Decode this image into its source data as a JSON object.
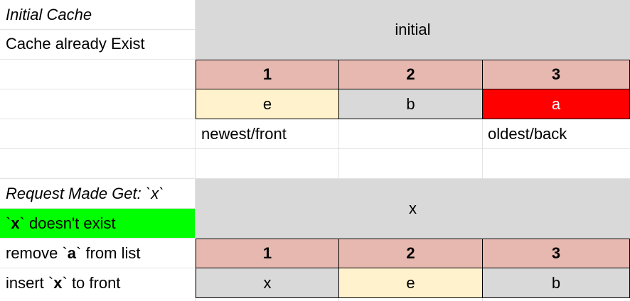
{
  "section1": {
    "title": "Initial Cache",
    "subtitle": "Cache already Exist",
    "state_label": "initial",
    "positions": [
      "1",
      "2",
      "3"
    ],
    "values": [
      "e",
      "b",
      "a"
    ],
    "front_label": "newest/front",
    "back_label": "oldest/back"
  },
  "section2": {
    "request_label": "Request Made Get: `x`",
    "missing": {
      "tick1": "`",
      "key": "x",
      "tick2": "`",
      "text": " doesn't exist"
    },
    "remove": {
      "pre": "remove `",
      "key": "a",
      "post": "` from list"
    },
    "insert": {
      "pre": "insert `",
      "key": "x",
      "post": "` to front"
    },
    "state_label": "x",
    "positions": [
      "1",
      "2",
      "3"
    ],
    "values": [
      "x",
      "e",
      "b"
    ]
  },
  "colors": {
    "header": "#e6b8af",
    "merged": "#d9d9d9",
    "newest": "#fff2cc",
    "evicted": "#ff0000",
    "miss": "#00ff00"
  }
}
